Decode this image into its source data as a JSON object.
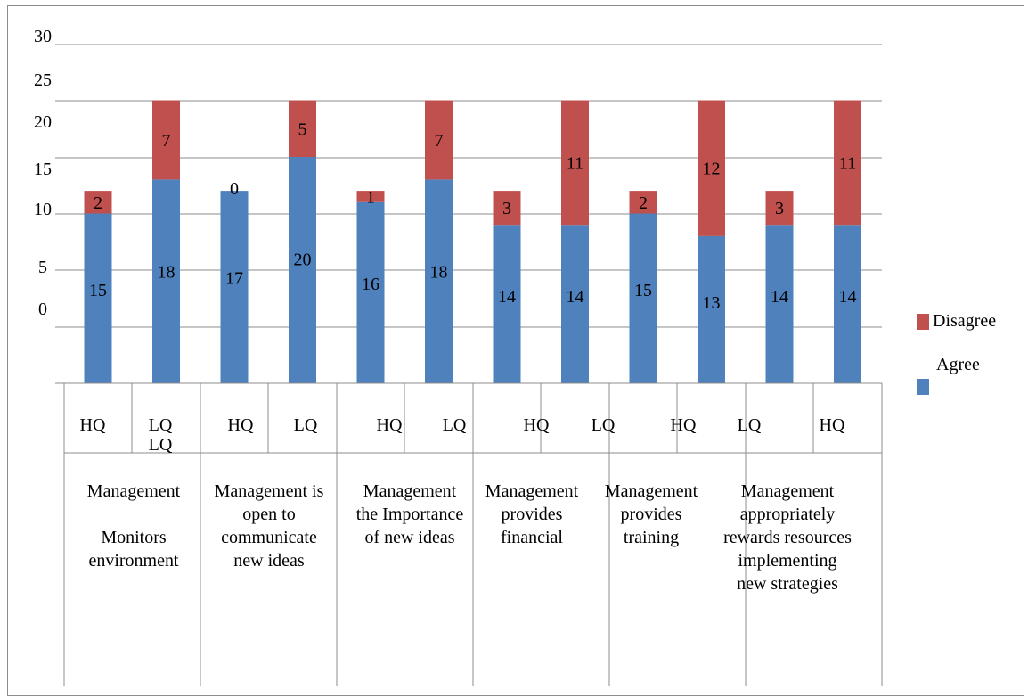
{
  "chart_data": {
    "type": "bar",
    "stacked": true,
    "y_tick_labels": [
      "30",
      "25",
      "20",
      "15",
      "10",
      "5",
      "0"
    ],
    "series": [
      {
        "name": "Agree",
        "color": "#4f81bd",
        "values": [
          15,
          18,
          17,
          20,
          16,
          18,
          14,
          14,
          15,
          13,
          14,
          14
        ]
      },
      {
        "name": "Disagree",
        "color": "#c0504d",
        "values": [
          2,
          7,
          0,
          5,
          1,
          7,
          3,
          11,
          2,
          12,
          3,
          11
        ]
      }
    ],
    "category_labels": [
      "HQ",
      "LQ\nLQ",
      "HQ",
      "LQ",
      "HQ",
      "LQ",
      "HQ",
      "LQ",
      "HQ",
      "LQ",
      "HQ",
      ""
    ],
    "group_labels": [
      "Management\n\nMonitors\nenvironment",
      "Management is\nopen to\ncommunicate\nnew ideas",
      "Management\nthe Importance\nof new ideas",
      "Management\nprovides\nfinancial",
      "Management\nprovides\ntraining",
      "Management\nappropriately\nrewards resources\nimplementing\nnew strategies"
    ],
    "legend": {
      "position": "right",
      "entries": [
        "Disagree",
        "Agree"
      ]
    },
    "grid": true
  }
}
